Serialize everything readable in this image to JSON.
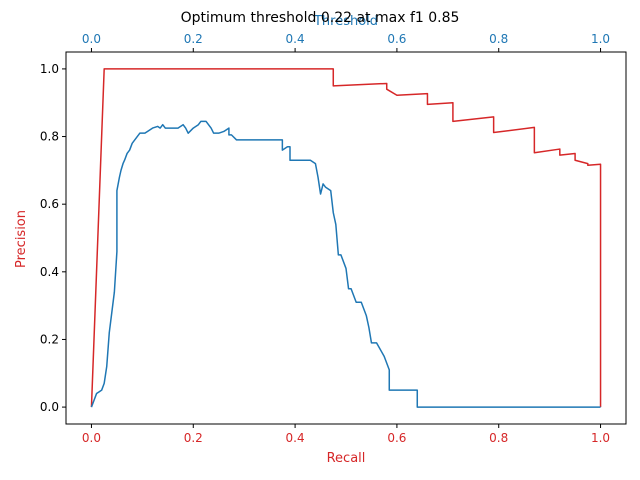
{
  "chart_data": {
    "type": "line",
    "title": "Optimum threshold 0.22 at max f1 0.85",
    "xlabel": "Recall",
    "ylabel": "Precision",
    "x2label": "Threshold",
    "xlim": [
      -0.05,
      1.05
    ],
    "ylim": [
      -0.05,
      1.05
    ],
    "x2lim": [
      -0.05,
      1.05
    ],
    "xticks": [
      0.0,
      0.2,
      0.4,
      0.6,
      0.8,
      1.0
    ],
    "xtick_labels": [
      "0.0",
      "0.2",
      "0.4",
      "0.6",
      "0.8",
      "1.0"
    ],
    "yticks": [
      0.0,
      0.2,
      0.4,
      0.6,
      0.8,
      1.0
    ],
    "ytick_labels": [
      "0.0",
      "0.2",
      "0.4",
      "0.6",
      "0.8",
      "1.0"
    ],
    "x2ticks": [
      0.0,
      0.2,
      0.4,
      0.6,
      0.8,
      1.0
    ],
    "x2tick_labels": [
      "0.0",
      "0.2",
      "0.4",
      "0.6",
      "0.8",
      "1.0"
    ],
    "grid": false,
    "colors": {
      "primary_axis": "#d62728",
      "secondary_axis": "#1f77b4",
      "text": "#000000"
    },
    "series": [
      {
        "axis": "recall-precision",
        "color": "#d62728",
        "x": [
          0.0,
          0.025,
          0.475,
          0.475,
          0.58,
          0.58,
          0.6,
          0.6,
          0.66,
          0.66,
          0.71,
          0.71,
          0.79,
          0.79,
          0.87,
          0.87,
          0.92,
          0.92,
          0.95,
          0.95,
          0.975,
          0.975,
          1.0,
          1.0
        ],
        "y": [
          0.0,
          1.0,
          1.0,
          0.95,
          0.957,
          0.94,
          0.922,
          0.922,
          0.927,
          0.895,
          0.9,
          0.845,
          0.858,
          0.812,
          0.827,
          0.752,
          0.763,
          0.745,
          0.75,
          0.73,
          0.72,
          0.715,
          0.718,
          0.0
        ]
      },
      {
        "axis": "threshold-f1",
        "color": "#1f77b4",
        "x": [
          0.0,
          0.005,
          0.01,
          0.015,
          0.02,
          0.025,
          0.03,
          0.035,
          0.04,
          0.045,
          0.05,
          0.05,
          0.055,
          0.058,
          0.062,
          0.065,
          0.07,
          0.075,
          0.08,
          0.085,
          0.09,
          0.095,
          0.1,
          0.105,
          0.11,
          0.12,
          0.13,
          0.135,
          0.14,
          0.145,
          0.15,
          0.16,
          0.17,
          0.18,
          0.185,
          0.19,
          0.2,
          0.21,
          0.215,
          0.225,
          0.235,
          0.24,
          0.25,
          0.26,
          0.27,
          0.27,
          0.275,
          0.285,
          0.31,
          0.35,
          0.36,
          0.37,
          0.375,
          0.375,
          0.385,
          0.39,
          0.39,
          0.395,
          0.43,
          0.44,
          0.445,
          0.45,
          0.455,
          0.46,
          0.47,
          0.475,
          0.48,
          0.485,
          0.49,
          0.5,
          0.505,
          0.51,
          0.52,
          0.53,
          0.54,
          0.545,
          0.55,
          0.56,
          0.575,
          0.585,
          0.585,
          0.59,
          0.64,
          0.64,
          0.8,
          1.0
        ],
        "y": [
          0.0,
          0.02,
          0.04,
          0.045,
          0.05,
          0.07,
          0.12,
          0.22,
          0.28,
          0.34,
          0.46,
          0.64,
          0.68,
          0.7,
          0.72,
          0.73,
          0.75,
          0.76,
          0.78,
          0.79,
          0.8,
          0.81,
          0.81,
          0.81,
          0.815,
          0.825,
          0.83,
          0.825,
          0.835,
          0.825,
          0.825,
          0.825,
          0.825,
          0.835,
          0.825,
          0.81,
          0.825,
          0.835,
          0.845,
          0.845,
          0.825,
          0.81,
          0.81,
          0.815,
          0.825,
          0.805,
          0.805,
          0.79,
          0.79,
          0.79,
          0.79,
          0.79,
          0.79,
          0.76,
          0.77,
          0.77,
          0.73,
          0.73,
          0.73,
          0.72,
          0.68,
          0.63,
          0.66,
          0.65,
          0.64,
          0.575,
          0.54,
          0.45,
          0.45,
          0.41,
          0.35,
          0.35,
          0.31,
          0.31,
          0.27,
          0.235,
          0.19,
          0.19,
          0.15,
          0.11,
          0.05,
          0.05,
          0.05,
          0.0,
          0.0,
          0.0
        ]
      }
    ]
  }
}
